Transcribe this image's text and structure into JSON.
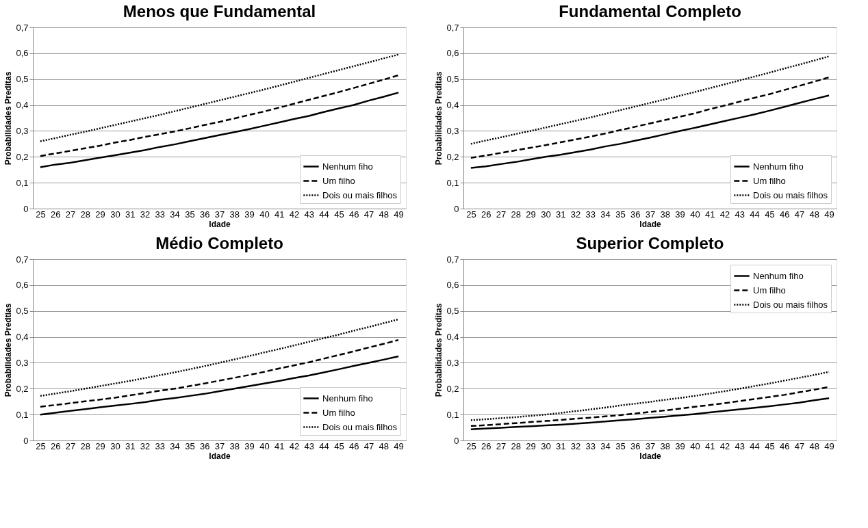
{
  "chart_data": [
    {
      "type": "line",
      "title": "Menos que Fundamental",
      "xlabel": "Idade",
      "ylabel": "Probabilidades  Preditas",
      "categories": [
        "25",
        "26",
        "27",
        "28",
        "29",
        "30",
        "31",
        "32",
        "33",
        "34",
        "35",
        "36",
        "37",
        "38",
        "39",
        "40",
        "41",
        "42",
        "43",
        "44",
        "45",
        "46",
        "47",
        "48",
        "49"
      ],
      "ylim": [
        0,
        0.7
      ],
      "yticks": [
        0,
        {
          "value": 0.1,
          "label": "0,1"
        },
        {
          "value": 0.2,
          "label": "0,2"
        },
        {
          "value": 0.3,
          "label": "0,3"
        },
        {
          "value": 0.4,
          "label": "0,4"
        },
        {
          "value": 0.5,
          "label": "0,5"
        },
        {
          "value": 0.6,
          "label": "0,6"
        },
        {
          "value": 0.7,
          "label": "0,7"
        }
      ],
      "grid": "y",
      "legend": "bottom right",
      "series": [
        {
          "name": "Nenhum fiho",
          "color": "#000000",
          "line_style": "solid",
          "values": [
            0.16,
            0.17,
            0.177,
            0.187,
            0.197,
            0.206,
            0.216,
            0.226,
            0.238,
            0.248,
            0.26,
            0.272,
            0.284,
            0.295,
            0.307,
            0.32,
            0.333,
            0.346,
            0.358,
            0.373,
            0.387,
            0.4,
            0.417,
            0.432,
            0.448
          ]
        },
        {
          "name": "Um filho",
          "color": "#000000",
          "line_style": "dashed",
          "values": [
            0.203,
            0.213,
            0.223,
            0.233,
            0.243,
            0.255,
            0.265,
            0.277,
            0.287,
            0.298,
            0.31,
            0.323,
            0.335,
            0.348,
            0.362,
            0.375,
            0.39,
            0.405,
            0.42,
            0.435,
            0.45,
            0.466,
            0.482,
            0.498,
            0.515
          ]
        },
        {
          "name": "Dois ou mais filhos",
          "color": "#000000",
          "line_style": "dotted",
          "values": [
            0.26,
            0.272,
            0.285,
            0.297,
            0.31,
            0.323,
            0.336,
            0.349,
            0.362,
            0.376,
            0.39,
            0.404,
            0.418,
            0.432,
            0.446,
            0.46,
            0.475,
            0.49,
            0.505,
            0.52,
            0.535,
            0.55,
            0.565,
            0.58,
            0.595
          ]
        }
      ]
    },
    {
      "type": "line",
      "title": "Fundamental Completo",
      "xlabel": "Idade",
      "ylabel": "Probabilidades  Preditas",
      "categories": [
        "25",
        "26",
        "27",
        "28",
        "29",
        "30",
        "31",
        "32",
        "33",
        "34",
        "35",
        "36",
        "37",
        "38",
        "39",
        "40",
        "41",
        "42",
        "43",
        "44",
        "45",
        "46",
        "47",
        "48",
        "49"
      ],
      "ylim": [
        0,
        0.7
      ],
      "yticks": [
        0,
        {
          "value": 0.1,
          "label": "0,1"
        },
        {
          "value": 0.2,
          "label": "0,2"
        },
        {
          "value": 0.3,
          "label": "0,3"
        },
        {
          "value": 0.4,
          "label": "0,4"
        },
        {
          "value": 0.5,
          "label": "0,5"
        },
        {
          "value": 0.6,
          "label": "0,6"
        },
        {
          "value": 0.7,
          "label": "0,7"
        }
      ],
      "grid": "y",
      "legend": "bottom right",
      "series": [
        {
          "name": "Nenhum fiho",
          "color": "#000000",
          "line_style": "solid",
          "values": [
            0.157,
            0.163,
            0.172,
            0.18,
            0.19,
            0.2,
            0.208,
            0.218,
            0.228,
            0.24,
            0.25,
            0.262,
            0.274,
            0.287,
            0.3,
            0.312,
            0.325,
            0.338,
            0.351,
            0.364,
            0.378,
            0.393,
            0.408,
            0.423,
            0.437
          ]
        },
        {
          "name": "Um filho",
          "color": "#000000",
          "line_style": "dashed",
          "values": [
            0.196,
            0.205,
            0.215,
            0.225,
            0.235,
            0.245,
            0.256,
            0.267,
            0.278,
            0.29,
            0.303,
            0.316,
            0.329,
            0.342,
            0.355,
            0.368,
            0.384,
            0.398,
            0.413,
            0.428,
            0.442,
            0.458,
            0.474,
            0.49,
            0.507
          ]
        },
        {
          "name": "Dois ou mais filhos",
          "color": "#000000",
          "line_style": "dotted",
          "values": [
            0.25,
            0.263,
            0.275,
            0.288,
            0.3,
            0.313,
            0.326,
            0.339,
            0.352,
            0.366,
            0.38,
            0.394,
            0.408,
            0.422,
            0.436,
            0.45,
            0.465,
            0.48,
            0.495,
            0.51,
            0.525,
            0.541,
            0.556,
            0.572,
            0.588
          ]
        }
      ]
    },
    {
      "type": "line",
      "title": "Médio Completo",
      "xlabel": "Idade",
      "ylabel": "Probabilidades  Predtias",
      "categories": [
        "25",
        "26",
        "27",
        "28",
        "29",
        "30",
        "31",
        "32",
        "33",
        "34",
        "35",
        "36",
        "37",
        "38",
        "39",
        "40",
        "41",
        "42",
        "43",
        "44",
        "45",
        "46",
        "47",
        "48",
        "49"
      ],
      "ylim": [
        0,
        0.7
      ],
      "yticks": [
        0,
        {
          "value": 0.1,
          "label": "0,1"
        },
        {
          "value": 0.2,
          "label": "0,2"
        },
        {
          "value": 0.3,
          "label": "0,3"
        },
        {
          "value": 0.4,
          "label": "0,4"
        },
        {
          "value": 0.5,
          "label": "0,5"
        },
        {
          "value": 0.6,
          "label": "0,6"
        },
        {
          "value": 0.7,
          "label": "0,7"
        }
      ],
      "grid": "y",
      "legend": "bottom right",
      "series": [
        {
          "name": "Nenhum fiho",
          "color": "#000000",
          "line_style": "solid",
          "values": [
            0.1,
            0.107,
            0.114,
            0.121,
            0.128,
            0.135,
            0.141,
            0.148,
            0.157,
            0.164,
            0.172,
            0.18,
            0.19,
            0.2,
            0.21,
            0.22,
            0.23,
            0.241,
            0.251,
            0.263,
            0.275,
            0.288,
            0.3,
            0.312,
            0.325
          ]
        },
        {
          "name": "Um filho",
          "color": "#000000",
          "line_style": "dashed",
          "values": [
            0.13,
            0.137,
            0.144,
            0.151,
            0.158,
            0.165,
            0.174,
            0.183,
            0.192,
            0.2,
            0.21,
            0.22,
            0.231,
            0.242,
            0.253,
            0.265,
            0.278,
            0.29,
            0.302,
            0.316,
            0.33,
            0.344,
            0.359,
            0.373,
            0.388
          ]
        },
        {
          "name": "Dois ou mais filhos",
          "color": "#000000",
          "line_style": "dotted",
          "values": [
            0.172,
            0.181,
            0.19,
            0.2,
            0.21,
            0.22,
            0.23,
            0.241,
            0.252,
            0.263,
            0.275,
            0.287,
            0.3,
            0.313,
            0.326,
            0.34,
            0.353,
            0.367,
            0.381,
            0.395,
            0.409,
            0.424,
            0.438,
            0.453,
            0.468
          ]
        }
      ]
    },
    {
      "type": "line",
      "title": "Superior Completo",
      "xlabel": "Idade",
      "ylabel": "Probabilidades  Preditas",
      "categories": [
        "25",
        "26",
        "27",
        "28",
        "29",
        "30",
        "31",
        "32",
        "33",
        "34",
        "35",
        "36",
        "37",
        "38",
        "39",
        "40",
        "41",
        "42",
        "43",
        "44",
        "45",
        "46",
        "47",
        "48",
        "49"
      ],
      "ylim": [
        0,
        0.7
      ],
      "yticks": [
        0,
        {
          "value": 0.1,
          "label": "0,1"
        },
        {
          "value": 0.2,
          "label": "0,2"
        },
        {
          "value": 0.3,
          "label": "0,3"
        },
        {
          "value": 0.4,
          "label": "0,4"
        },
        {
          "value": 0.5,
          "label": "0,5"
        },
        {
          "value": 0.6,
          "label": "0,6"
        },
        {
          "value": 0.7,
          "label": "0,7"
        }
      ],
      "grid": "y",
      "legend": "top right",
      "series": [
        {
          "name": "Nenhum fiho",
          "color": "#000000",
          "line_style": "solid",
          "values": [
            0.043,
            0.046,
            0.049,
            0.052,
            0.055,
            0.058,
            0.061,
            0.065,
            0.069,
            0.073,
            0.078,
            0.082,
            0.087,
            0.092,
            0.097,
            0.102,
            0.108,
            0.114,
            0.12,
            0.126,
            0.132,
            0.139,
            0.146,
            0.155,
            0.163
          ]
        },
        {
          "name": "Um filho",
          "color": "#000000",
          "line_style": "dashed",
          "values": [
            0.056,
            0.059,
            0.063,
            0.067,
            0.071,
            0.075,
            0.079,
            0.084,
            0.088,
            0.093,
            0.098,
            0.104,
            0.11,
            0.116,
            0.123,
            0.13,
            0.137,
            0.144,
            0.152,
            0.16,
            0.168,
            0.176,
            0.186,
            0.196,
            0.207
          ]
        },
        {
          "name": "Dois ou mais filhos",
          "color": "#000000",
          "line_style": "dotted",
          "values": [
            0.078,
            0.082,
            0.086,
            0.09,
            0.095,
            0.1,
            0.106,
            0.113,
            0.12,
            0.127,
            0.135,
            0.142,
            0.149,
            0.157,
            0.164,
            0.172,
            0.181,
            0.19,
            0.2,
            0.21,
            0.22,
            0.231,
            0.242,
            0.253,
            0.265
          ]
        }
      ]
    }
  ]
}
